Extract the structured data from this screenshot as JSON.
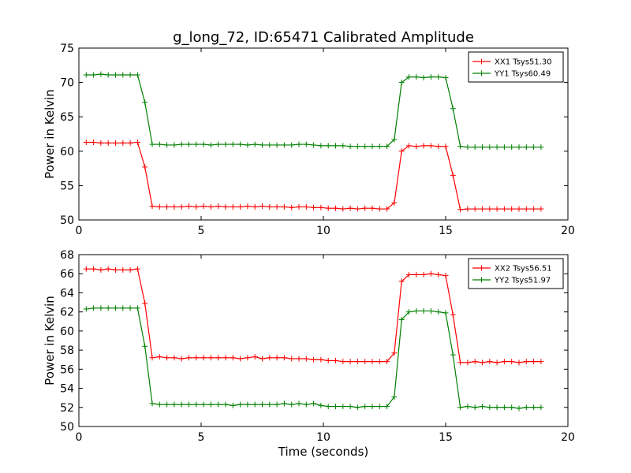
{
  "chart_data": [
    {
      "type": "line",
      "title": "g_long_72, ID:65471 Calibrated Amplitude",
      "xlabel": "",
      "ylabel": "Power in Kelvin",
      "xlim": [
        0,
        20
      ],
      "ylim": [
        50,
        75
      ],
      "xticks": [
        0,
        5,
        10,
        15,
        20
      ],
      "yticks": [
        50,
        55,
        60,
        65,
        70,
        75
      ],
      "grid": false,
      "legend": "top-right",
      "marker": "+",
      "x": [
        0.3,
        0.6,
        0.9,
        1.2,
        1.5,
        1.8,
        2.1,
        2.4,
        2.7,
        3.0,
        3.3,
        3.6,
        3.9,
        4.2,
        4.5,
        4.8,
        5.1,
        5.4,
        5.7,
        6.0,
        6.3,
        6.6,
        6.9,
        7.2,
        7.5,
        7.8,
        8.1,
        8.4,
        8.7,
        9.0,
        9.3,
        9.6,
        9.9,
        10.2,
        10.5,
        10.8,
        11.1,
        11.4,
        11.7,
        12.0,
        12.3,
        12.6,
        12.9,
        13.2,
        13.5,
        13.8,
        14.1,
        14.4,
        14.7,
        15.0,
        15.3,
        15.6,
        15.9,
        16.2,
        16.5,
        16.8,
        17.1,
        17.4,
        17.7,
        18.0,
        18.3,
        18.6,
        18.9
      ],
      "series": [
        {
          "name": "XX1 Tsys51.30",
          "color": "#ff0000",
          "values": [
            61.3,
            61.3,
            61.2,
            61.2,
            61.2,
            61.2,
            61.2,
            61.3,
            57.7,
            52.0,
            51.9,
            51.9,
            51.9,
            51.9,
            52.0,
            51.9,
            52.0,
            51.9,
            52.0,
            51.9,
            51.9,
            51.9,
            52.0,
            51.9,
            52.0,
            51.9,
            51.9,
            51.9,
            51.8,
            51.9,
            51.9,
            51.8,
            51.8,
            51.7,
            51.7,
            51.6,
            51.7,
            51.6,
            51.7,
            51.7,
            51.6,
            51.6,
            52.5,
            60.0,
            60.8,
            60.7,
            60.8,
            60.8,
            60.7,
            60.7,
            56.5,
            51.5,
            51.6,
            51.6,
            51.6,
            51.6,
            51.6,
            51.6,
            51.6,
            51.6,
            51.6,
            51.6,
            51.6
          ]
        },
        {
          "name": "YY1 Tsys60.49",
          "color": "#008000",
          "values": [
            71.1,
            71.1,
            71.2,
            71.1,
            71.1,
            71.1,
            71.1,
            71.1,
            67.1,
            61.0,
            61.0,
            60.9,
            60.9,
            61.0,
            61.0,
            61.0,
            61.0,
            60.9,
            61.0,
            61.0,
            61.0,
            61.0,
            60.9,
            61.0,
            60.9,
            60.9,
            60.9,
            60.9,
            60.9,
            61.0,
            61.0,
            60.9,
            60.8,
            60.8,
            60.8,
            60.8,
            60.7,
            60.7,
            60.7,
            60.7,
            60.7,
            60.7,
            61.7,
            70.0,
            70.8,
            70.8,
            70.7,
            70.8,
            70.8,
            70.7,
            66.2,
            60.7,
            60.6,
            60.6,
            60.6,
            60.6,
            60.6,
            60.6,
            60.6,
            60.6,
            60.6,
            60.6,
            60.6
          ]
        }
      ]
    },
    {
      "type": "line",
      "title": "",
      "xlabel": "Time (seconds)",
      "ylabel": "Power in Kelvin",
      "xlim": [
        0,
        20
      ],
      "ylim": [
        50,
        68
      ],
      "xticks": [
        0,
        5,
        10,
        15,
        20
      ],
      "yticks": [
        50,
        52,
        54,
        56,
        58,
        60,
        62,
        64,
        66,
        68
      ],
      "grid": false,
      "legend": "top-right",
      "marker": "+",
      "x": [
        0.3,
        0.6,
        0.9,
        1.2,
        1.5,
        1.8,
        2.1,
        2.4,
        2.7,
        3.0,
        3.3,
        3.6,
        3.9,
        4.2,
        4.5,
        4.8,
        5.1,
        5.4,
        5.7,
        6.0,
        6.3,
        6.6,
        6.9,
        7.2,
        7.5,
        7.8,
        8.1,
        8.4,
        8.7,
        9.0,
        9.3,
        9.6,
        9.9,
        10.2,
        10.5,
        10.8,
        11.1,
        11.4,
        11.7,
        12.0,
        12.3,
        12.6,
        12.9,
        13.2,
        13.5,
        13.8,
        14.1,
        14.4,
        14.7,
        15.0,
        15.3,
        15.6,
        15.9,
        16.2,
        16.5,
        16.8,
        17.1,
        17.4,
        17.7,
        18.0,
        18.3,
        18.6,
        18.9
      ],
      "series": [
        {
          "name": "XX2 Tsys56.51",
          "color": "#ff0000",
          "values": [
            66.5,
            66.5,
            66.4,
            66.5,
            66.4,
            66.4,
            66.4,
            66.5,
            62.9,
            57.2,
            57.3,
            57.2,
            57.2,
            57.1,
            57.2,
            57.2,
            57.2,
            57.2,
            57.2,
            57.2,
            57.2,
            57.1,
            57.2,
            57.3,
            57.1,
            57.2,
            57.2,
            57.2,
            57.1,
            57.1,
            57.1,
            57.0,
            57.0,
            56.9,
            56.9,
            56.8,
            56.8,
            56.8,
            56.8,
            56.8,
            56.8,
            56.8,
            57.7,
            65.2,
            65.9,
            65.9,
            65.9,
            66.0,
            65.9,
            65.8,
            61.7,
            56.7,
            56.7,
            56.8,
            56.7,
            56.8,
            56.7,
            56.8,
            56.8,
            56.7,
            56.8,
            56.8,
            56.8
          ]
        },
        {
          "name": "YY2 Tsys51.97",
          "color": "#008000",
          "values": [
            62.3,
            62.4,
            62.4,
            62.4,
            62.4,
            62.4,
            62.4,
            62.4,
            58.4,
            52.4,
            52.3,
            52.3,
            52.3,
            52.3,
            52.3,
            52.3,
            52.3,
            52.3,
            52.3,
            52.3,
            52.2,
            52.3,
            52.3,
            52.3,
            52.3,
            52.3,
            52.3,
            52.4,
            52.3,
            52.4,
            52.3,
            52.4,
            52.2,
            52.1,
            52.1,
            52.1,
            52.1,
            52.0,
            52.1,
            52.1,
            52.1,
            52.1,
            53.1,
            61.2,
            62.0,
            62.1,
            62.1,
            62.1,
            62.0,
            61.9,
            57.5,
            52.0,
            52.1,
            52.0,
            52.1,
            52.0,
            52.0,
            52.0,
            52.0,
            51.9,
            52.0,
            52.0,
            52.0
          ]
        }
      ]
    }
  ]
}
